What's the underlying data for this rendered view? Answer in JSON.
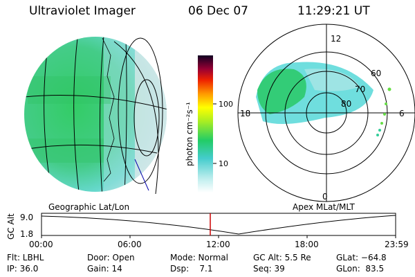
{
  "header": {
    "title": "Ultraviolet Imager",
    "date": "06 Dec 07",
    "time": "11:29:21 UT"
  },
  "colorbar": {
    "label": "photon cm⁻²s⁻¹",
    "ticks": [
      "100",
      "10"
    ]
  },
  "left_panel": {
    "caption": "Geographic Lat/Lon"
  },
  "right_panel": {
    "caption": "Apex MLat/MLT",
    "mlt_labels": [
      "12",
      "18",
      "6",
      "0"
    ],
    "lat_labels": [
      "60",
      "70",
      "80"
    ]
  },
  "timeline": {
    "ylabel": "GC Alt",
    "yticks": [
      "9.0",
      "1.8"
    ],
    "xticks": [
      "00:00",
      "06:00",
      "12:00",
      "18:00",
      "23:59"
    ]
  },
  "footer": [
    [
      "Flt: LBHL",
      "Door: Open",
      "Mode: Normal",
      "GC Alt: 5.5 Re",
      "GLat: −64.8"
    ],
    [
      "IP: 36.0",
      "Gain: 14",
      "Dsp:    7.1",
      "Seq: 39",
      "GLon:  83.5"
    ]
  ],
  "colors": {
    "aurora_green": "#22cc77",
    "aurora_cyan": "#4fd6d6",
    "marker": "#cc0000"
  }
}
